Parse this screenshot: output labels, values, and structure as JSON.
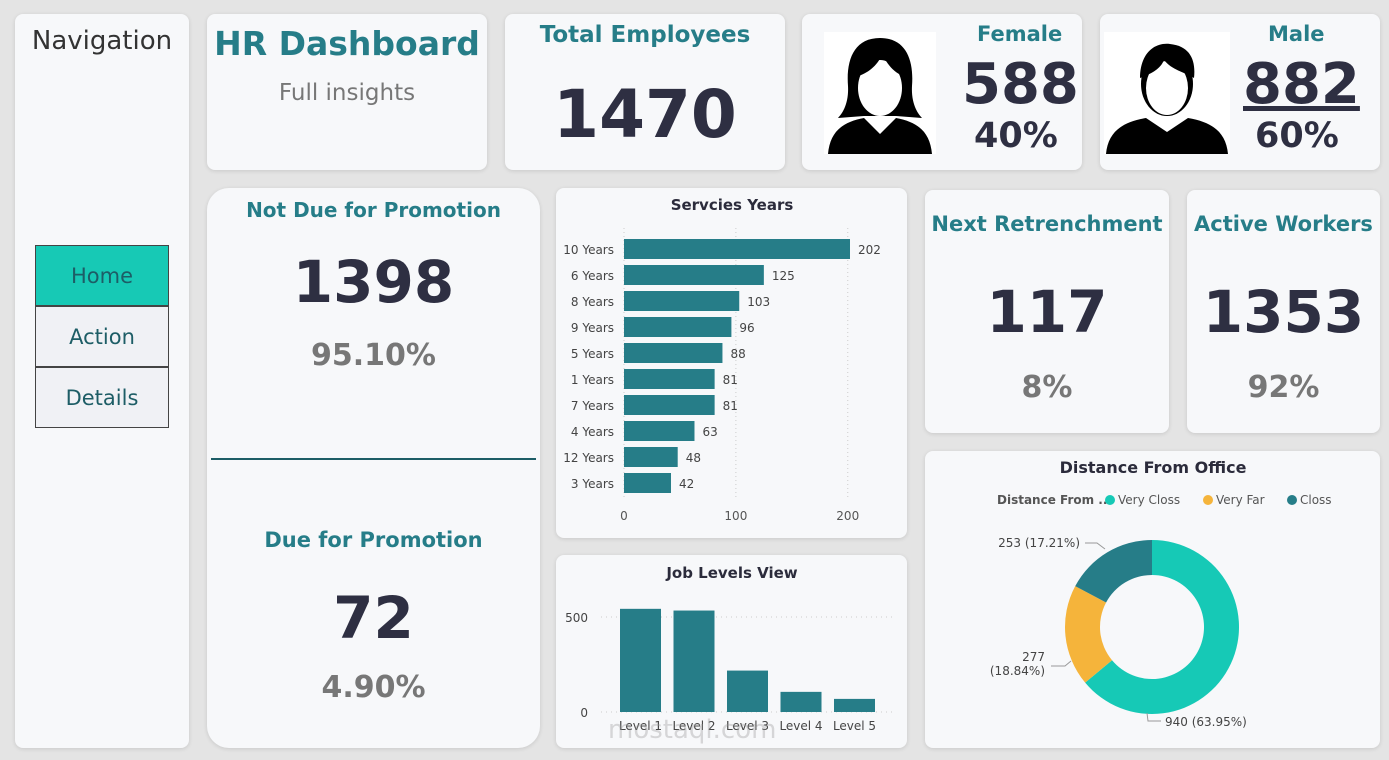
{
  "nav": {
    "title": "Navigation",
    "items": [
      {
        "label": "Home",
        "active": true
      },
      {
        "label": "Action"
      },
      {
        "label": "Details"
      }
    ]
  },
  "header": {
    "title": "HR Dashboard",
    "subtitle": "Full insights"
  },
  "total": {
    "label": "Total Employees",
    "value": "1470"
  },
  "female": {
    "label": "Female",
    "value": "588",
    "pct": "40%",
    "icon": "female-avatar-icon"
  },
  "male": {
    "label": "Male",
    "value": "882",
    "pct": "60%",
    "icon": "male-avatar-icon"
  },
  "promotion": {
    "not_due_label": "Not Due for Promotion",
    "not_due_value": "1398",
    "not_due_pct": "95.10%",
    "due_label": "Due for Promotion",
    "due_value": "72",
    "due_pct": "4.90%"
  },
  "retrenchment": {
    "label": "Next Retrenchment",
    "value": "117",
    "pct": "8%"
  },
  "active": {
    "label": "Active Workers",
    "value": "1353",
    "pct": "92%"
  },
  "colors": {
    "teal": "#267d88",
    "turquoise": "#16c9b6",
    "yellow": "#f5b43b",
    "active_nav": "#17c9b5"
  },
  "chart_data": [
    {
      "type": "bar",
      "orientation": "horizontal",
      "title": "Servcies Years",
      "categories": [
        "10 Years",
        "6 Years",
        "8 Years",
        "9 Years",
        "5 Years",
        "1 Years",
        "7 Years",
        "4 Years",
        "12 Years",
        "3 Years"
      ],
      "values": [
        202,
        125,
        103,
        96,
        88,
        81,
        81,
        63,
        48,
        42
      ],
      "xlim": [
        0,
        230
      ],
      "xticks": [
        "0",
        "100",
        "200"
      ],
      "grid": true
    },
    {
      "type": "bar",
      "title": "Job Levels View",
      "categories": [
        "Level 1",
        "Level 2",
        "Level 3",
        "Level 4",
        "Level 5"
      ],
      "values": [
        543,
        534,
        218,
        106,
        69
      ],
      "ylim": [
        0,
        600
      ],
      "yticks": [
        "0",
        "500"
      ],
      "grid": true
    },
    {
      "type": "pie",
      "donut": true,
      "title": "Distance From Office",
      "legend_title": "Distance From ...",
      "legend_position": "top",
      "slices": [
        {
          "name": "Very Closs",
          "value": 940,
          "label": "940 (63.95%)",
          "color": "#16c9b6"
        },
        {
          "name": "Very Far",
          "value": 277,
          "label": "277 (18.84%)",
          "label_lines": [
            "277",
            "(18.84%)"
          ],
          "color": "#f5b43b"
        },
        {
          "name": "Closs",
          "value": 253,
          "label": "253 (17.21%)",
          "color": "#267d88"
        }
      ]
    }
  ],
  "watermark": "mostaql.com"
}
